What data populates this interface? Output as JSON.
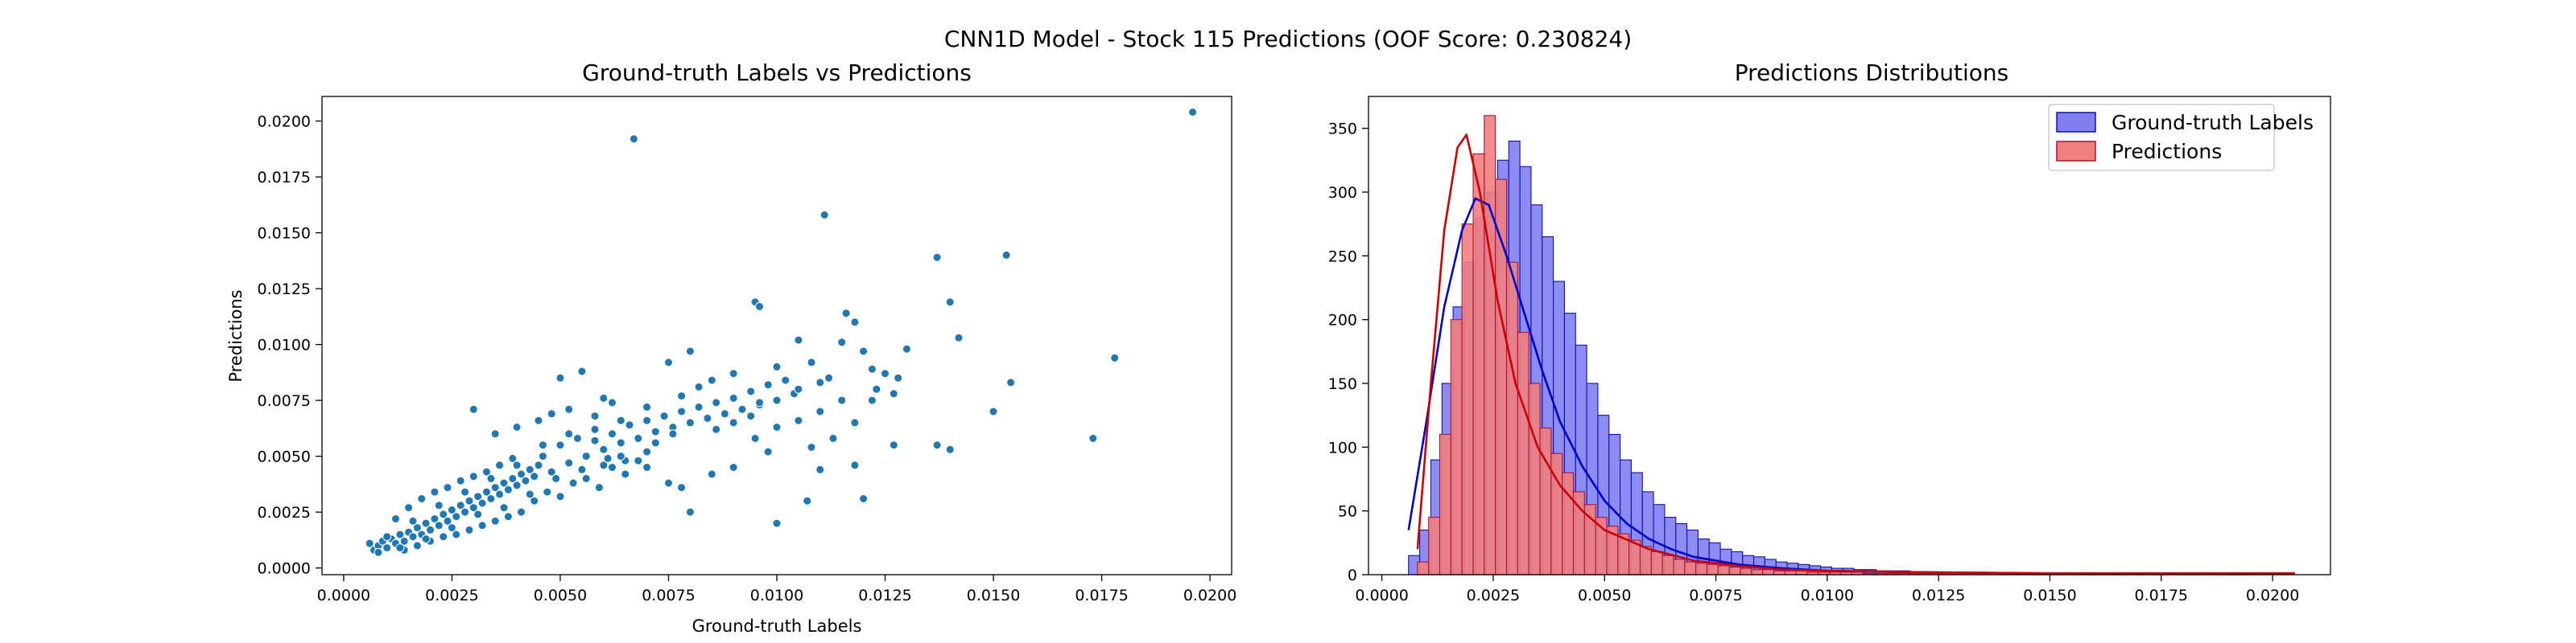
{
  "suptitle": "CNN1D Model - Stock 115 Predictions (OOF Score: 0.230824)",
  "colors": {
    "scatter": "#1f77b4",
    "truth_fill": "#7f7ff0",
    "truth_edge": "#1010b0",
    "pred_fill": "#f07f7f",
    "pred_edge": "#b01030",
    "kde_truth": "#0000cc",
    "kde_pred": "#cc0000"
  },
  "chart_data": [
    {
      "type": "scatter",
      "title": "Ground-truth Labels vs Predictions",
      "xlabel": "Ground-truth Labels",
      "ylabel": "Predictions",
      "xlim": [
        -0.0005,
        0.0205
      ],
      "ylim": [
        -0.0003,
        0.0211
      ],
      "xticks": [
        0.0,
        0.0025,
        0.005,
        0.0075,
        0.01,
        0.0125,
        0.015,
        0.0175,
        0.02
      ],
      "yticks": [
        0.0,
        0.0025,
        0.005,
        0.0075,
        0.01,
        0.0125,
        0.015,
        0.0175,
        0.02
      ],
      "tick_labels_x": [
        "0.0000",
        "0.0025",
        "0.0050",
        "0.0075",
        "0.0100",
        "0.0125",
        "0.0150",
        "0.0175",
        "0.0200"
      ],
      "tick_labels_y": [
        "0.0000",
        "0.0025",
        "0.0050",
        "0.0075",
        "0.0100",
        "0.0125",
        "0.0150",
        "0.0175",
        "0.0200"
      ],
      "points": [
        [
          0.0006,
          0.0011
        ],
        [
          0.0007,
          0.0008
        ],
        [
          0.0008,
          0.001
        ],
        [
          0.0009,
          0.0012
        ],
        [
          0.001,
          0.0009
        ],
        [
          0.0011,
          0.0013
        ],
        [
          0.0012,
          0.0011
        ],
        [
          0.0013,
          0.0015
        ],
        [
          0.0014,
          0.0012
        ],
        [
          0.0015,
          0.0016
        ],
        [
          0.0016,
          0.0014
        ],
        [
          0.0017,
          0.0018
        ],
        [
          0.0018,
          0.0015
        ],
        [
          0.0019,
          0.002
        ],
        [
          0.002,
          0.0017
        ],
        [
          0.0021,
          0.0022
        ],
        [
          0.0022,
          0.0019
        ],
        [
          0.0023,
          0.0024
        ],
        [
          0.0024,
          0.0021
        ],
        [
          0.0025,
          0.0026
        ],
        [
          0.0026,
          0.0023
        ],
        [
          0.0027,
          0.0028
        ],
        [
          0.0028,
          0.0025
        ],
        [
          0.0029,
          0.003
        ],
        [
          0.003,
          0.0027
        ],
        [
          0.0031,
          0.0032
        ],
        [
          0.0032,
          0.0029
        ],
        [
          0.0033,
          0.0034
        ],
        [
          0.0034,
          0.0031
        ],
        [
          0.0035,
          0.0036
        ],
        [
          0.0036,
          0.0033
        ],
        [
          0.0037,
          0.0038
        ],
        [
          0.0038,
          0.0035
        ],
        [
          0.0039,
          0.004
        ],
        [
          0.004,
          0.0037
        ],
        [
          0.0041,
          0.0042
        ],
        [
          0.0042,
          0.0039
        ],
        [
          0.0043,
          0.0044
        ],
        [
          0.0044,
          0.0041
        ],
        [
          0.0045,
          0.0046
        ],
        [
          0.0012,
          0.0022
        ],
        [
          0.0015,
          0.0027
        ],
        [
          0.0018,
          0.0031
        ],
        [
          0.0021,
          0.0034
        ],
        [
          0.0024,
          0.0036
        ],
        [
          0.0027,
          0.0039
        ],
        [
          0.003,
          0.0041
        ],
        [
          0.0033,
          0.0043
        ],
        [
          0.0036,
          0.0046
        ],
        [
          0.0039,
          0.0049
        ],
        [
          0.0014,
          0.0008
        ],
        [
          0.0017,
          0.001
        ],
        [
          0.002,
          0.0012
        ],
        [
          0.0023,
          0.0014
        ],
        [
          0.0026,
          0.0015
        ],
        [
          0.0029,
          0.0017
        ],
        [
          0.0032,
          0.0019
        ],
        [
          0.0035,
          0.0021
        ],
        [
          0.0038,
          0.0023
        ],
        [
          0.0041,
          0.0025
        ],
        [
          0.0046,
          0.005
        ],
        [
          0.0048,
          0.0043
        ],
        [
          0.005,
          0.0055
        ],
        [
          0.0052,
          0.0047
        ],
        [
          0.0054,
          0.0058
        ],
        [
          0.0056,
          0.005
        ],
        [
          0.0058,
          0.0062
        ],
        [
          0.006,
          0.0053
        ],
        [
          0.0062,
          0.006
        ],
        [
          0.0064,
          0.0056
        ],
        [
          0.0044,
          0.003
        ],
        [
          0.0047,
          0.0034
        ],
        [
          0.005,
          0.0032
        ],
        [
          0.0053,
          0.0038
        ],
        [
          0.0056,
          0.004
        ],
        [
          0.0059,
          0.0036
        ],
        [
          0.0062,
          0.0045
        ],
        [
          0.0065,
          0.0042
        ],
        [
          0.0068,
          0.0048
        ],
        [
          0.007,
          0.0052
        ],
        [
          0.0066,
          0.0064
        ],
        [
          0.0068,
          0.0058
        ],
        [
          0.007,
          0.0066
        ],
        [
          0.0072,
          0.0061
        ],
        [
          0.0074,
          0.0068
        ],
        [
          0.0076,
          0.0063
        ],
        [
          0.0078,
          0.007
        ],
        [
          0.008,
          0.0065
        ],
        [
          0.0082,
          0.0072
        ],
        [
          0.0084,
          0.0067
        ],
        [
          0.0086,
          0.0074
        ],
        [
          0.0088,
          0.0069
        ],
        [
          0.009,
          0.0076
        ],
        [
          0.0092,
          0.0071
        ],
        [
          0.0094,
          0.0079
        ],
        [
          0.0096,
          0.0073
        ],
        [
          0.0098,
          0.0082
        ],
        [
          0.01,
          0.0075
        ],
        [
          0.0102,
          0.0084
        ],
        [
          0.0104,
          0.0078
        ],
        [
          0.005,
          0.0085
        ],
        [
          0.0055,
          0.0088
        ],
        [
          0.006,
          0.0076
        ],
        [
          0.007,
          0.0072
        ],
        [
          0.0075,
          0.0092
        ],
        [
          0.008,
          0.0097
        ],
        [
          0.0085,
          0.0084
        ],
        [
          0.009,
          0.0087
        ],
        [
          0.0095,
          0.0119
        ],
        [
          0.0096,
          0.0117
        ],
        [
          0.01,
          0.009
        ],
        [
          0.0105,
          0.0102
        ],
        [
          0.0108,
          0.0092
        ],
        [
          0.011,
          0.0083
        ],
        [
          0.0112,
          0.0085
        ],
        [
          0.0115,
          0.0101
        ],
        [
          0.0116,
          0.0114
        ],
        [
          0.0118,
          0.011
        ],
        [
          0.012,
          0.0097
        ],
        [
          0.0122,
          0.0089
        ],
        [
          0.0123,
          0.008
        ],
        [
          0.0125,
          0.0087
        ],
        [
          0.0127,
          0.0078
        ],
        [
          0.013,
          0.0098
        ],
        [
          0.0105,
          0.0066
        ],
        [
          0.011,
          0.007
        ],
        [
          0.0115,
          0.0075
        ],
        [
          0.0118,
          0.0065
        ],
        [
          0.0122,
          0.0075
        ],
        [
          0.0128,
          0.0085
        ],
        [
          0.0065,
          0.0048
        ],
        [
          0.007,
          0.0045
        ],
        [
          0.0075,
          0.0038
        ],
        [
          0.0078,
          0.0036
        ],
        [
          0.008,
          0.0025
        ],
        [
          0.0085,
          0.0042
        ],
        [
          0.009,
          0.0045
        ],
        [
          0.0095,
          0.0058
        ],
        [
          0.0098,
          0.0052
        ],
        [
          0.01,
          0.0063
        ],
        [
          0.003,
          0.0071
        ],
        [
          0.0035,
          0.006
        ],
        [
          0.004,
          0.0063
        ],
        [
          0.0045,
          0.0066
        ],
        [
          0.0048,
          0.0069
        ],
        [
          0.0052,
          0.0071
        ],
        [
          0.0058,
          0.0068
        ],
        [
          0.0062,
          0.0074
        ],
        [
          0.0078,
          0.0077
        ],
        [
          0.0082,
          0.0081
        ],
        [
          0.01,
          0.002
        ],
        [
          0.0107,
          0.003
        ],
        [
          0.0111,
          0.0158
        ],
        [
          0.0067,
          0.0192
        ],
        [
          0.0196,
          0.0204
        ],
        [
          0.0137,
          0.0139
        ],
        [
          0.0153,
          0.014
        ],
        [
          0.014,
          0.0119
        ],
        [
          0.0142,
          0.0103
        ],
        [
          0.0154,
          0.0083
        ],
        [
          0.015,
          0.007
        ],
        [
          0.0137,
          0.0055
        ],
        [
          0.014,
          0.0053
        ],
        [
          0.0173,
          0.0058
        ],
        [
          0.0178,
          0.0094
        ],
        [
          0.012,
          0.0031
        ],
        [
          0.0118,
          0.0046
        ],
        [
          0.0108,
          0.0054
        ],
        [
          0.0113,
          0.0058
        ],
        [
          0.0127,
          0.0055
        ],
        [
          0.0105,
          0.008
        ],
        [
          0.011,
          0.0044
        ],
        [
          0.0094,
          0.0068
        ],
        [
          0.009,
          0.0065
        ],
        [
          0.0096,
          0.0074
        ],
        [
          0.0086,
          0.0062
        ],
        [
          0.0072,
          0.0056
        ],
        [
          0.0076,
          0.006
        ],
        [
          0.006,
          0.0046
        ],
        [
          0.0064,
          0.005
        ],
        [
          0.0008,
          0.0007
        ],
        [
          0.001,
          0.0014
        ],
        [
          0.0013,
          0.0009
        ],
        [
          0.0016,
          0.0021
        ],
        [
          0.0019,
          0.0013
        ],
        [
          0.0022,
          0.0028
        ],
        [
          0.0025,
          0.0018
        ],
        [
          0.0028,
          0.0034
        ],
        [
          0.0031,
          0.0024
        ],
        [
          0.0034,
          0.004
        ],
        [
          0.0037,
          0.0027
        ],
        [
          0.004,
          0.0046
        ],
        [
          0.0043,
          0.0033
        ],
        [
          0.0046,
          0.0055
        ],
        [
          0.0049,
          0.004
        ],
        [
          0.0052,
          0.006
        ],
        [
          0.0055,
          0.0044
        ],
        [
          0.0058,
          0.0057
        ],
        [
          0.0061,
          0.0049
        ],
        [
          0.0064,
          0.0066
        ]
      ]
    },
    {
      "type": "bar",
      "title": "Predictions Distributions",
      "xlabel": "",
      "ylabel": "",
      "xlim": [
        -0.0003,
        0.0213
      ],
      "ylim": [
        0,
        375
      ],
      "xticks": [
        0.0,
        0.0025,
        0.005,
        0.0075,
        0.01,
        0.0125,
        0.015,
        0.0175,
        0.02
      ],
      "yticks": [
        0,
        50,
        100,
        150,
        200,
        250,
        300,
        350
      ],
      "tick_labels_x": [
        "0.0000",
        "0.0025",
        "0.0050",
        "0.0075",
        "0.0100",
        "0.0125",
        "0.0150",
        "0.0175",
        "0.0200"
      ],
      "tick_labels_y": [
        "0",
        "50",
        "100",
        "150",
        "200",
        "250",
        "300",
        "350"
      ],
      "legend": "top-right",
      "bin_width": 0.00025,
      "series": [
        {
          "name": "Ground-truth Labels",
          "x_start": 0.0006,
          "values": [
            15,
            35,
            90,
            150,
            210,
            245,
            280,
            300,
            325,
            340,
            320,
            290,
            265,
            230,
            205,
            180,
            150,
            125,
            110,
            90,
            80,
            65,
            55,
            45,
            40,
            35,
            28,
            25,
            20,
            18,
            15,
            14,
            12,
            10,
            9,
            8,
            7,
            6,
            5,
            5,
            4,
            4,
            3,
            3,
            3,
            2,
            2,
            2,
            2,
            1,
            1,
            1,
            1,
            1,
            1,
            1,
            1,
            1,
            1,
            1,
            1,
            1,
            1,
            1,
            1,
            1,
            1,
            1,
            1,
            1,
            1,
            1,
            1,
            1,
            1,
            1
          ],
          "kde": [
            [
              0.0006,
              35
            ],
            [
              0.001,
              120
            ],
            [
              0.0014,
              210
            ],
            [
              0.0018,
              270
            ],
            [
              0.0021,
              295
            ],
            [
              0.0024,
              290
            ],
            [
              0.0028,
              250
            ],
            [
              0.0032,
              205
            ],
            [
              0.0036,
              160
            ],
            [
              0.004,
              120
            ],
            [
              0.0045,
              85
            ],
            [
              0.005,
              58
            ],
            [
              0.0055,
              40
            ],
            [
              0.006,
              28
            ],
            [
              0.0065,
              20
            ],
            [
              0.007,
              14
            ],
            [
              0.008,
              8
            ],
            [
              0.009,
              5
            ],
            [
              0.01,
              3
            ],
            [
              0.012,
              2
            ],
            [
              0.015,
              1
            ],
            [
              0.0205,
              1
            ]
          ]
        },
        {
          "name": "Predictions",
          "x_start": 0.0008,
          "values": [
            10,
            45,
            110,
            200,
            275,
            330,
            360,
            310,
            245,
            190,
            150,
            115,
            95,
            80,
            65,
            55,
            45,
            38,
            32,
            27,
            22,
            18,
            15,
            12,
            10,
            9,
            8,
            7,
            6,
            5,
            4,
            4,
            3,
            3,
            3,
            2,
            2,
            2,
            2,
            2,
            1,
            1,
            1,
            1,
            1,
            1,
            1,
            1,
            1,
            1,
            1,
            1,
            1,
            1,
            1,
            1,
            1,
            1,
            1,
            1,
            1,
            1,
            1,
            1,
            1,
            1,
            1,
            1,
            1,
            1,
            1,
            1,
            1,
            1,
            1,
            1,
            1
          ],
          "kde": [
            [
              0.0008,
              20
            ],
            [
              0.0011,
              150
            ],
            [
              0.0014,
              270
            ],
            [
              0.0017,
              335
            ],
            [
              0.0019,
              345
            ],
            [
              0.0022,
              300
            ],
            [
              0.0026,
              215
            ],
            [
              0.003,
              150
            ],
            [
              0.0035,
              100
            ],
            [
              0.004,
              70
            ],
            [
              0.0045,
              50
            ],
            [
              0.005,
              35
            ],
            [
              0.006,
              20
            ],
            [
              0.007,
              11
            ],
            [
              0.008,
              7
            ],
            [
              0.009,
              4
            ],
            [
              0.01,
              3
            ],
            [
              0.012,
              2
            ],
            [
              0.015,
              1
            ],
            [
              0.0205,
              1
            ]
          ]
        }
      ]
    }
  ]
}
